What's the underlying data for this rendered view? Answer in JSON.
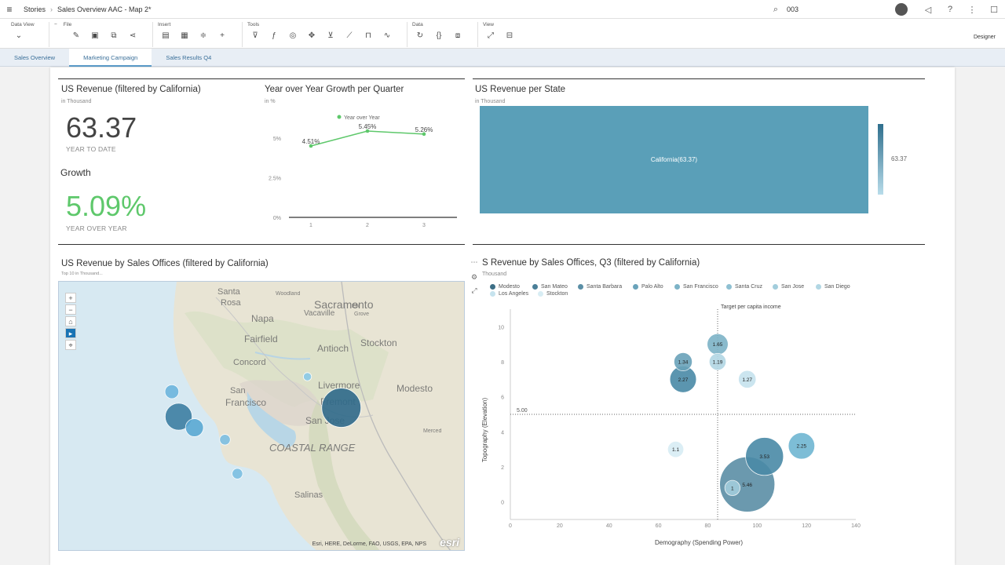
{
  "shell": {
    "breadcrumb_root": "Stories",
    "title": "Sales Overview AAC - Map 2*",
    "search_value": "003"
  },
  "toolbar": {
    "groups": [
      {
        "label": "Data View"
      },
      {
        "label": "File"
      },
      {
        "label": "Insert"
      },
      {
        "label": "Tools"
      },
      {
        "label": "Data"
      },
      {
        "label": "View"
      }
    ],
    "mode_label": "Designer"
  },
  "tabs": [
    {
      "label": "Sales Overview",
      "active": false
    },
    {
      "label": "Marketing Campaign",
      "active": true
    },
    {
      "label": "Sales Results Q4",
      "active": false
    }
  ],
  "kpi": {
    "title": "US Revenue (filtered by California)",
    "subtitle": "in Thousand",
    "value": "63.37",
    "value_caption": "YEAR TO DATE",
    "growth_title": "Growth",
    "growth_value": "5.09%",
    "growth_caption": "YEAR OVER YEAR",
    "growth_color": "#5ec86b"
  },
  "line_chart": {
    "title": "Year over Year Growth per Quarter",
    "subtitle": "in %",
    "legend": "Year over Year",
    "y_ticks": [
      "0%",
      "2.5%",
      "5%"
    ]
  },
  "state_chart": {
    "title": "US Revenue per State",
    "subtitle": "in Thousand",
    "block_label": "California(63.37)",
    "scale_value": "63.37",
    "color": "#5a9fb8"
  },
  "map_widget": {
    "title": "US Revenue by Sales Offices (filtered by California)",
    "subtitle": "Top 10 in Thousand...",
    "attribution": "Esri, HERE, DeLorme, FAO, USGS, EPA, NPS",
    "logo": "esri",
    "places": [
      {
        "name": "Sacramento"
      },
      {
        "name": "Santa"
      },
      {
        "name": "Rosa"
      },
      {
        "name": "Woodland"
      },
      {
        "name": "Elk"
      },
      {
        "name": "Grove"
      },
      {
        "name": "Napa"
      },
      {
        "name": "Vacaville"
      },
      {
        "name": "Fairfield"
      },
      {
        "name": "Antioch"
      },
      {
        "name": "Stockton"
      },
      {
        "name": "Concord"
      },
      {
        "name": "Livermore"
      },
      {
        "name": "Modesto"
      },
      {
        "name": "San"
      },
      {
        "name": "Francisco"
      },
      {
        "name": "Fremont"
      },
      {
        "name": "San Jose"
      },
      {
        "name": "COASTAL RANGE"
      },
      {
        "name": "Salinas"
      },
      {
        "name": "Merced"
      }
    ]
  },
  "bubble_widget": {
    "title": "S Revenue by Sales Offices, Q3 (filtered by California)",
    "subtitle": "Thousand",
    "legend": [
      {
        "name": "Modesto",
        "color": "#3d6f86"
      },
      {
        "name": "San Mateo",
        "color": "#4a7f98"
      },
      {
        "name": "Santa Barbara",
        "color": "#5b8fa6"
      },
      {
        "name": "Palo Alto",
        "color": "#6aa3ba"
      },
      {
        "name": "San Francisco",
        "color": "#7db3c7"
      },
      {
        "name": "Santa Cruz",
        "color": "#8fc0d2"
      },
      {
        "name": "San Jose",
        "color": "#a2cddc"
      },
      {
        "name": "San Diego",
        "color": "#b2d7e4"
      },
      {
        "name": "Los Angeles",
        "color": "#c6e3ee"
      },
      {
        "name": "Stockton",
        "color": "#d8edf4"
      }
    ]
  },
  "chart_data": [
    {
      "type": "line",
      "title": "Year over Year Growth per Quarter",
      "x": [
        1,
        2,
        3
      ],
      "series": [
        {
          "name": "Year over Year",
          "values": [
            4.51,
            5.45,
            5.26
          ]
        }
      ],
      "value_labels": [
        "4.51%",
        "5.45%",
        "5.26%"
      ],
      "y_ticks": [
        "0%",
        "2.5%",
        "5%"
      ],
      "ylim": [
        0,
        5.5
      ],
      "color": "#5ec86b"
    },
    {
      "type": "bubble",
      "xlabel": "Demography (Spending Power)",
      "ylabel": "Topography (Elevation)",
      "xlim": [
        0,
        140
      ],
      "ylim": [
        -1,
        11
      ],
      "x_ticks": [
        0,
        20,
        40,
        60,
        80,
        100,
        120,
        140
      ],
      "y_ticks": [
        0,
        2,
        4,
        6,
        8,
        10
      ],
      "reference_y": {
        "value": 5,
        "label": "5.00"
      },
      "reference_x": {
        "value": 84,
        "label": "Target per capita income"
      },
      "points": [
        {
          "x": 70,
          "y": 8,
          "size": 1.34,
          "label": "1.34",
          "color": "#6aa3ba"
        },
        {
          "x": 84,
          "y": 9,
          "size": 1.65,
          "label": "1.65",
          "color": "#7db3c7"
        },
        {
          "x": 84,
          "y": 8,
          "size": 1.19,
          "label": "1.19",
          "color": "#b2d7e4"
        },
        {
          "x": 70,
          "y": 7,
          "size": 2.27,
          "label": "2.27",
          "color": "#4a8aa7"
        },
        {
          "x": 96,
          "y": 7,
          "size": 1.27,
          "label": "1.27",
          "color": "#c6e3ee"
        },
        {
          "x": 67,
          "y": 3,
          "size": 1.1,
          "label": "1.1",
          "color": "#d8edf4"
        },
        {
          "x": 118,
          "y": 3.2,
          "size": 2.25,
          "label": "2.25",
          "color": "#6fb6d2"
        },
        {
          "x": 103,
          "y": 2.6,
          "size": 3.53,
          "label": "3.53",
          "color": "#4a8aa7"
        },
        {
          "x": 96,
          "y": 1,
          "size": 5.46,
          "label": "5.46",
          "color": "#5b8fa6"
        },
        {
          "x": 90,
          "y": 0.8,
          "size": 1,
          "label": "1",
          "color": "#a2cddc"
        }
      ]
    },
    {
      "type": "map-bubble",
      "points": [
        {
          "lon": -121.0,
          "lat": 37.64,
          "size": 4.8,
          "color": "#2f6a8a"
        },
        {
          "lon": -122.44,
          "lat": 37.55,
          "size": 3.3,
          "color": "#3d7fa3"
        },
        {
          "lon": -122.3,
          "lat": 37.44,
          "size": 2.2,
          "color": "#5aa9d4"
        },
        {
          "lon": -122.5,
          "lat": 37.8,
          "size": 1.7,
          "color": "#6db6de"
        },
        {
          "lon": -122.03,
          "lat": 37.32,
          "size": 1.3,
          "color": "#7dbfe2"
        },
        {
          "lon": -121.92,
          "lat": 36.98,
          "size": 1.3,
          "color": "#7dbfe2"
        },
        {
          "lon": -121.3,
          "lat": 37.95,
          "size": 1.0,
          "color": "#8ccae8"
        }
      ]
    }
  ]
}
